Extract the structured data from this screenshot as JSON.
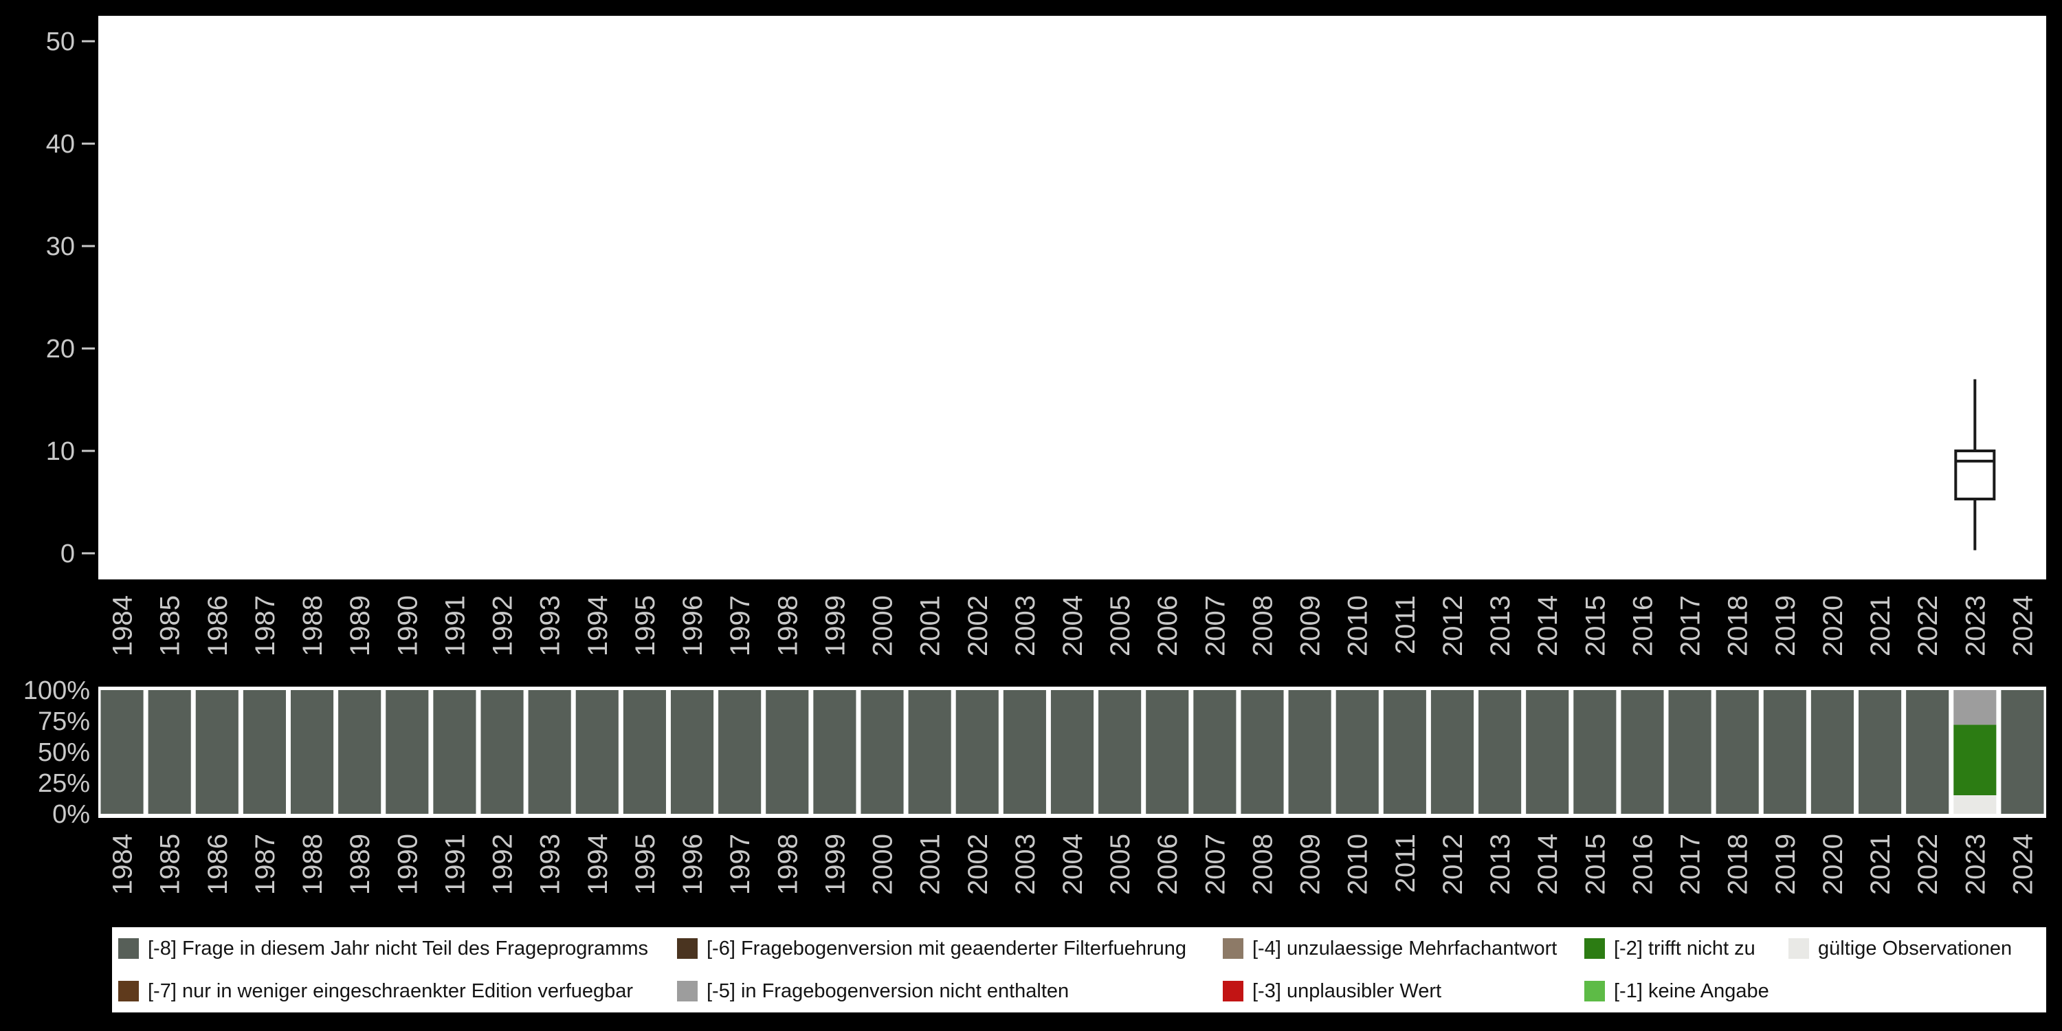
{
  "colors": {
    "-8": "#575f58",
    "-7": "#5f3a1c",
    "-6": "#4a3420",
    "-5": "#9d9d9d",
    "-4": "#8d7a67",
    "-3": "#c21414",
    "-2": "#2c7c13",
    "-1": "#5dbb46",
    "valid": "#e9e9e6",
    "page_background": "#000000",
    "plot_background": "#ffffff",
    "axis_text": "#c9c9c9",
    "box_stroke": "#1a1a1a"
  },
  "chart_data": [
    {
      "type": "boxplot",
      "title": "",
      "xlabel": "",
      "ylabel": "",
      "ylim": [
        0,
        50
      ],
      "yticks": [
        0,
        10,
        20,
        30,
        40,
        50
      ],
      "ytick_labels": [
        "0",
        "10",
        "20",
        "30",
        "40",
        "50"
      ],
      "x_categories": [
        "1984",
        "1985",
        "1986",
        "1987",
        "1988",
        "1989",
        "1990",
        "1991",
        "1992",
        "1993",
        "1994",
        "1995",
        "1996",
        "1997",
        "1998",
        "1999",
        "2000",
        "2001",
        "2002",
        "2003",
        "2004",
        "2005",
        "2006",
        "2007",
        "2008",
        "2009",
        "2010",
        "2011",
        "2012",
        "2013",
        "2014",
        "2015",
        "2016",
        "2017",
        "2018",
        "2019",
        "2020",
        "2021",
        "2022",
        "2023",
        "2024"
      ],
      "boxes": [
        {
          "category": "2023",
          "whisker_low": 0.3,
          "q1": 5.3,
          "median": 9,
          "q3": 10,
          "whisker_high": 17
        }
      ]
    },
    {
      "type": "stacked-bar-percent",
      "title": "",
      "xlabel": "",
      "ylabel": "",
      "yticks": [
        0,
        25,
        50,
        75,
        100
      ],
      "ytick_labels": [
        "0%",
        "25%",
        "50%",
        "75%",
        "100%"
      ],
      "x_categories": [
        "1984",
        "1985",
        "1986",
        "1987",
        "1988",
        "1989",
        "1990",
        "1991",
        "1992",
        "1993",
        "1994",
        "1995",
        "1996",
        "1997",
        "1998",
        "1999",
        "2000",
        "2001",
        "2002",
        "2003",
        "2004",
        "2005",
        "2006",
        "2007",
        "2008",
        "2009",
        "2010",
        "2011",
        "2012",
        "2013",
        "2014",
        "2015",
        "2016",
        "2017",
        "2018",
        "2019",
        "2020",
        "2021",
        "2022",
        "2023",
        "2024"
      ],
      "default_segment": {
        "key": "-8",
        "value": 100
      },
      "bars": {
        "2023": [
          {
            "key": "valid",
            "value": 15
          },
          {
            "key": "-2",
            "value": 57
          },
          {
            "key": "-5",
            "value": 28
          }
        ]
      }
    }
  ],
  "legend": {
    "rows": [
      [
        {
          "key": "-8",
          "label": "[-8] Frage in diesem Jahr nicht Teil des Frageprogramms"
        },
        {
          "key": "-6",
          "label": "[-6] Fragebogenversion mit geaenderter Filterfuehrung"
        },
        {
          "key": "-4",
          "label": "[-4] unzulaessige Mehrfachantwort"
        },
        {
          "key": "-2",
          "label": "[-2] trifft nicht zu"
        },
        {
          "key": "valid",
          "label": "gültige Observationen"
        }
      ],
      [
        {
          "key": "-7",
          "label": "[-7] nur in weniger eingeschraenkter Edition verfuegbar"
        },
        {
          "key": "-5",
          "label": "[-5] in Fragebogenversion nicht enthalten"
        },
        {
          "key": "-3",
          "label": "[-3] unplausibler Wert"
        },
        {
          "key": "-1",
          "label": "[-1] keine Angabe"
        }
      ]
    ]
  }
}
